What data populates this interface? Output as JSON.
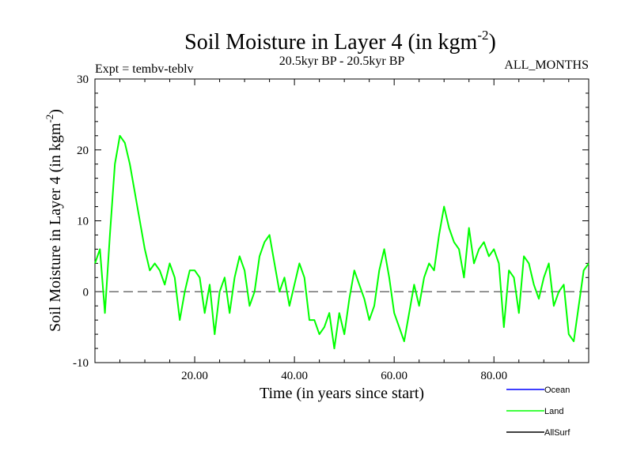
{
  "chart_data": {
    "type": "line",
    "title": "Soil Moisture in Layer 4 (in kgm",
    "title_superscript": "-2",
    "title_suffix": ")",
    "subtitle_left": "Expt = tembv-teblv",
    "subtitle_center": "20.5kyr BP - 20.5kyr BP",
    "subtitle_right": "ALL_MONTHS",
    "xlabel": "Time (in years since start)",
    "ylabel": "Soil Moisture in Layer 4 (in kgm",
    "ylabel_superscript": "-2",
    "ylabel_suffix": ")",
    "xlim": [
      0,
      99
    ],
    "ylim": [
      -10,
      30
    ],
    "x_ticks": [
      20,
      40,
      60,
      80
    ],
    "x_tick_labels": [
      "20.00",
      "40.00",
      "60.00",
      "80.00"
    ],
    "y_ticks": [
      -10,
      0,
      10,
      20,
      30
    ],
    "y_tick_labels": [
      "-10",
      "0",
      "10",
      "20",
      "30"
    ],
    "reference_line": 0,
    "legend": [
      {
        "name": "Ocean",
        "color": "#0000ff"
      },
      {
        "name": "Land",
        "color": "#00ff00"
      },
      {
        "name": "AllSurf",
        "color": "#000000"
      }
    ],
    "series": [
      {
        "name": "Land",
        "color": "#00ff00",
        "x": [
          0,
          1,
          2,
          3,
          4,
          5,
          6,
          7,
          8,
          9,
          10,
          11,
          12,
          13,
          14,
          15,
          16,
          17,
          18,
          19,
          20,
          21,
          22,
          23,
          24,
          25,
          26,
          27,
          28,
          29,
          30,
          31,
          32,
          33,
          34,
          35,
          36,
          37,
          38,
          39,
          40,
          41,
          42,
          43,
          44,
          45,
          46,
          47,
          48,
          49,
          50,
          51,
          52,
          53,
          54,
          55,
          56,
          57,
          58,
          59,
          60,
          61,
          62,
          63,
          64,
          65,
          66,
          67,
          68,
          69,
          70,
          71,
          72,
          73,
          74,
          75,
          76,
          77,
          78,
          79,
          80,
          81,
          82,
          83,
          84,
          85,
          86,
          87,
          88,
          89,
          90,
          91,
          92,
          93,
          94,
          95,
          96,
          97,
          98,
          99
        ],
        "values": [
          4,
          6,
          -3,
          8,
          18,
          22,
          21,
          18,
          14,
          10,
          6,
          3,
          4,
          3,
          1,
          4,
          2,
          -4,
          0,
          3,
          3,
          2,
          -3,
          1,
          -6,
          0,
          2,
          -3,
          2,
          5,
          3,
          -2,
          0,
          5,
          7,
          8,
          4,
          0,
          2,
          -2,
          1,
          4,
          2,
          -4,
          -4,
          -6,
          -5,
          -3,
          -8,
          -3,
          -6,
          -1,
          3,
          1,
          -1,
          -4,
          -2,
          3,
          6,
          2,
          -3,
          -5,
          -7,
          -3,
          1,
          -2,
          2,
          4,
          3,
          8,
          12,
          9,
          7,
          6,
          2,
          9,
          4,
          6,
          7,
          5,
          6,
          4,
          -5,
          3,
          2,
          -3,
          5,
          4,
          1,
          -1,
          2,
          4,
          -2,
          0,
          1,
          -6,
          -7,
          -2,
          3,
          4
        ]
      }
    ]
  }
}
